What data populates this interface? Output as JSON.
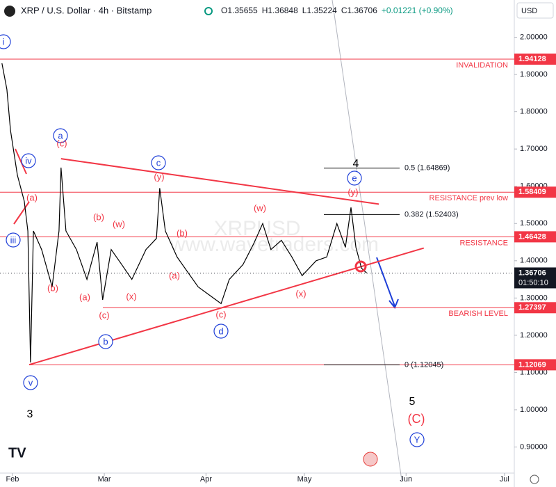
{
  "chart_data": {
    "type": "line",
    "title": "XRP / U.S. Dollar · 4h · Bitstamp",
    "ohlc": [
      "O1.35655",
      "H1.36848",
      "L1.35224",
      "C1.36706",
      "+0.01221 (+0.90%)"
    ],
    "currency": "USD",
    "countdown": "01:50:10",
    "watermark": [
      "XRPUSD",
      "www.wavetraders.com"
    ],
    "x": [
      -3.2,
      -1.7,
      -0.6,
      1.5,
      3.6,
      4.7,
      5.5,
      6.4,
      8.9,
      12.1,
      14.2,
      14.8,
      16.3,
      19.5,
      22.7,
      25.8,
      27.5,
      30.1,
      33.3,
      36.4,
      40.7,
      43.9,
      44.9,
      46.6,
      50.2,
      53.4,
      56.6,
      59.7,
      63.6,
      66.1,
      70.3,
      73.5,
      76.3,
      78.8,
      82,
      85.2,
      88.3,
      92.6,
      95.8,
      98.9,
      101.5,
      103.2,
      104.7,
      106.4,
      108
    ],
    "series": [
      {
        "color": "#000000",
        "values": [
          1.93,
          1.86,
          1.75,
          1.63,
          1.56,
          1.48,
          1.127,
          1.48,
          1.43,
          1.33,
          1.48,
          1.65,
          1.48,
          1.43,
          1.35,
          1.45,
          1.295,
          1.43,
          1.39,
          1.35,
          1.43,
          1.46,
          1.595,
          1.48,
          1.41,
          1.37,
          1.33,
          1.31,
          1.285,
          1.35,
          1.39,
          1.445,
          1.5,
          1.43,
          1.455,
          1.41,
          1.36,
          1.4,
          1.41,
          1.5,
          1.436,
          1.543,
          1.436,
          1.38,
          1.367
        ]
      }
    ],
    "xlim": [
      -3.8,
      153
    ],
    "xticks": [
      {
        "value": 0,
        "label": "Feb"
      },
      {
        "value": 28,
        "label": "Mar"
      },
      {
        "value": 59,
        "label": "Apr"
      },
      {
        "value": 89,
        "label": "May"
      },
      {
        "value": 120,
        "label": "Jun"
      },
      {
        "value": 150,
        "label": "Jul"
      }
    ],
    "ylim": [
      0.83,
      2.1
    ],
    "yticks": [
      {
        "value": 0.9,
        "label": "0.90000"
      },
      {
        "value": 1.0,
        "label": "1.00000"
      },
      {
        "value": 1.1,
        "label": "1.10000"
      },
      {
        "value": 1.2,
        "label": "1.20000"
      },
      {
        "value": 1.3,
        "label": "1.30000"
      },
      {
        "value": 1.4,
        "label": "1.40000"
      },
      {
        "value": 1.5,
        "label": "1.50000"
      },
      {
        "value": 1.6,
        "label": "1.60000"
      },
      {
        "value": 1.7,
        "label": "1.70000"
      },
      {
        "value": 1.8,
        "label": "1.80000"
      },
      {
        "value": 1.9,
        "label": "1.90000"
      },
      {
        "value": 2.0,
        "label": "2.00000"
      }
    ],
    "current_price": 1.36706,
    "level_color": "#f23645",
    "levels": [
      {
        "label": "INVALIDATION",
        "value": 1.94128
      },
      {
        "label": "RESISTANCE prev low",
        "value": 1.58409
      },
      {
        "label": "RESISTANCE",
        "value": 1.46428
      },
      {
        "label": "BEARISH LEVEL",
        "value": 1.27397
      },
      {
        "value": 1.12069
      }
    ],
    "fib": [
      {
        "label": "0.5 (1.64869)",
        "value": 1.64869
      },
      {
        "label": "0.382 (1.52403)",
        "value": 1.52403
      },
      {
        "label": "0 (1.12045)",
        "value": 1.12045
      }
    ],
    "trendlines": [
      {
        "x": [
          14.8,
          111.7
        ],
        "y": [
          1.674,
          1.552
        ]
      },
      {
        "x": [
          5.1,
          125.4
        ],
        "y": [
          1.121,
          1.434
        ]
      }
    ],
    "wave_labels": [
      {
        "text": "i",
        "style": "blue"
      },
      {
        "text": "a",
        "style": "blue"
      },
      {
        "text": "iv",
        "style": "blue"
      },
      {
        "text": "iii",
        "style": "blue"
      },
      {
        "text": "c",
        "style": "blue"
      },
      {
        "text": "e",
        "style": "blue"
      },
      {
        "text": "b",
        "style": "blue"
      },
      {
        "text": "d",
        "style": "blue"
      },
      {
        "text": "v",
        "style": "blue"
      },
      {
        "text": "Y",
        "style": "blue"
      },
      {
        "text": "(c)",
        "style": "red"
      },
      {
        "text": "(a)",
        "style": "red"
      },
      {
        "text": "(b)",
        "style": "red"
      },
      {
        "text": "(a)",
        "style": "red"
      },
      {
        "text": "(c)",
        "style": "red"
      },
      {
        "text": "(b)",
        "style": "red"
      },
      {
        "text": "(w)",
        "style": "red"
      },
      {
        "text": "(x)",
        "style": "red"
      },
      {
        "text": "(y)",
        "style": "red"
      },
      {
        "text": "(b)",
        "style": "red"
      },
      {
        "text": "(a)",
        "style": "red"
      },
      {
        "text": "(c)",
        "style": "red"
      },
      {
        "text": "(w)",
        "style": "red"
      },
      {
        "text": "(x)",
        "style": "red"
      },
      {
        "text": "(y)",
        "style": "red"
      },
      {
        "text": "(C)",
        "style": "red"
      },
      {
        "text": "4",
        "style": "black"
      },
      {
        "text": "3",
        "style": "black"
      },
      {
        "text": "5",
        "style": "black"
      }
    ]
  }
}
